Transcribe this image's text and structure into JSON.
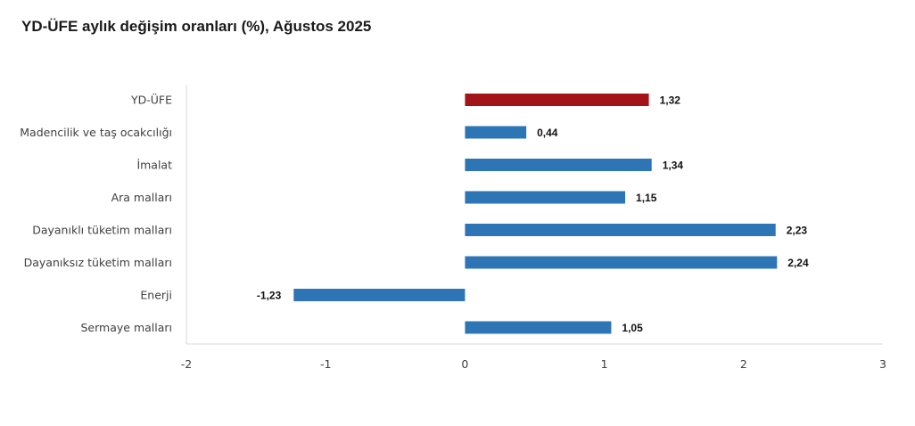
{
  "chart_data": {
    "type": "bar",
    "orientation": "horizontal",
    "title": "YD-ÜFE aylık değişim oranları (%), Ağustos 2025",
    "categories": [
      "YD-ÜFE",
      "Madencilik ve taş ocakcılığı",
      "İmalat",
      "Ara malları",
      "Dayanıklı tüketim malları",
      "Dayanıksız tüketim malları",
      "Enerji",
      "Sermaye malları"
    ],
    "values": [
      1.32,
      0.44,
      1.34,
      1.15,
      2.23,
      2.24,
      -1.23,
      1.05
    ],
    "value_labels": [
      "1,32",
      "0,44",
      "1,34",
      "1,15",
      "2,23",
      "2,24",
      "-1,23",
      "1,05"
    ],
    "bar_colors": [
      "#a31419",
      "#2e75b6",
      "#2e75b6",
      "#2e75b6",
      "#2e75b6",
      "#2e75b6",
      "#2e75b6",
      "#2e75b6"
    ],
    "xlim": [
      -2,
      3
    ],
    "xticks": [
      "-2",
      "-1",
      "0",
      "1",
      "2",
      "3"
    ],
    "grid": false,
    "xlabel": "",
    "ylabel": ""
  }
}
